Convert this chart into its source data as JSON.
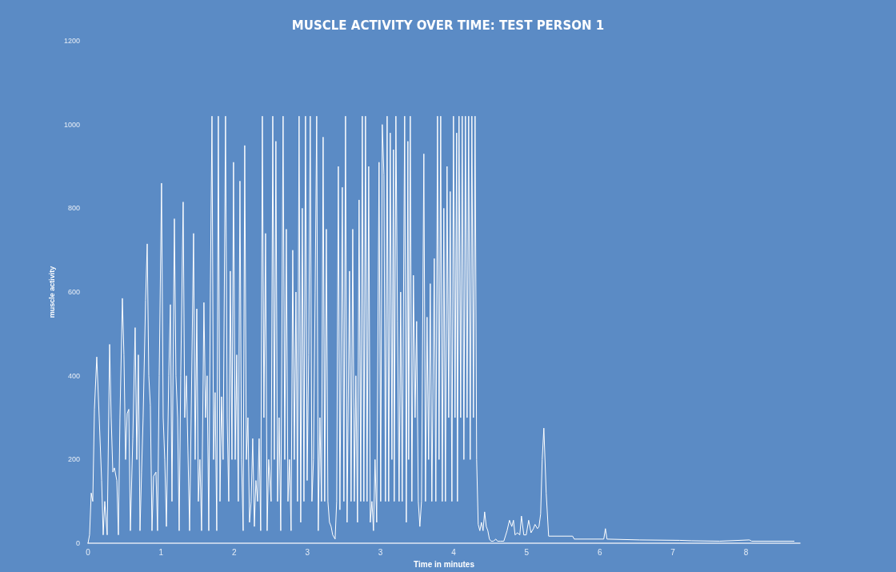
{
  "chart_data": {
    "type": "line",
    "title": "MUSCLE ACTIVITY OVER TIME: TEST PERSON 1",
    "xlabel": "Time in minutes",
    "ylabel": "muscle activity",
    "xlim": [
      0,
      8.2
    ],
    "xticks": [
      0,
      {
        "value": 0.842,
        "label": "1"
      },
      {
        "value": 1.684,
        "label": "2"
      },
      {
        "value": 2.526,
        "label": "3"
      },
      {
        "value": 3.368,
        "label": "3"
      },
      {
        "value": 4.21,
        "label": "4"
      },
      {
        "value": 5.052,
        "label": "5"
      },
      {
        "value": 5.894,
        "label": "6"
      },
      {
        "value": 6.736,
        "label": "7"
      },
      {
        "value": 7.578,
        "label": "8"
      }
    ],
    "ylim": [
      0,
      1200
    ],
    "yticks": [
      0,
      200,
      400,
      600,
      800,
      1000,
      1200
    ],
    "grid": false,
    "marker": "none",
    "line_style": "solid",
    "series": [
      {
        "color": "#ffffff",
        "x": [
          0,
          0.018,
          0.037,
          0.055,
          0.074,
          0.101,
          0.129,
          0.157,
          0.175,
          0.193,
          0.221,
          0.249,
          0.267,
          0.286,
          0.304,
          0.332,
          0.35,
          0.368,
          0.396,
          0.414,
          0.433,
          0.451,
          0.47,
          0.488,
          0.516,
          0.543,
          0.562,
          0.58,
          0.599,
          0.617,
          0.635,
          0.663,
          0.682,
          0.7,
          0.718,
          0.737,
          0.755,
          0.783,
          0.801,
          0.82,
          0.847,
          0.866,
          0.884,
          0.903,
          0.93,
          0.949,
          0.967,
          0.995,
          1.013,
          1.032,
          1.05,
          1.068,
          1.096,
          1.114,
          1.133,
          1.151,
          1.17,
          1.188,
          1.216,
          1.234,
          1.253,
          1.271,
          1.289,
          1.308,
          1.335,
          1.354,
          1.372,
          1.391,
          1.409,
          1.428,
          1.446,
          1.464,
          1.483,
          1.501,
          1.52,
          1.538,
          1.556,
          1.584,
          1.603,
          1.621,
          1.639,
          1.658,
          1.676,
          1.695,
          1.713,
          1.731,
          1.75,
          1.768,
          1.787,
          1.805,
          1.824,
          1.842,
          1.86,
          1.879,
          1.897,
          1.916,
          1.934,
          1.953,
          1.971,
          1.989,
          2.008,
          2.026,
          2.045,
          2.063,
          2.081,
          2.109,
          2.128,
          2.146,
          2.164,
          2.183,
          2.201,
          2.22,
          2.247,
          2.266,
          2.284,
          2.303,
          2.321,
          2.339,
          2.358,
          2.376,
          2.395,
          2.413,
          2.431,
          2.45,
          2.468,
          2.487,
          2.505,
          2.524,
          2.542,
          2.56,
          2.579,
          2.597,
          2.616,
          2.634,
          2.652,
          2.671,
          2.689,
          2.708,
          2.726,
          2.745,
          2.763,
          2.781,
          2.8,
          2.818,
          2.846,
          2.864,
          2.883,
          2.901,
          2.929,
          2.947,
          2.966,
          2.984,
          3.012,
          3.03,
          3.049,
          3.067,
          3.085,
          3.104,
          3.122,
          3.141,
          3.159,
          3.177,
          3.196,
          3.214,
          3.233,
          3.251,
          3.27,
          3.288,
          3.306,
          3.325,
          3.352,
          3.371,
          3.389,
          3.408,
          3.426,
          3.445,
          3.463,
          3.481,
          3.5,
          3.518,
          3.527,
          3.546,
          3.564,
          3.583,
          3.601,
          3.619,
          3.647,
          3.666,
          3.684,
          3.693,
          3.712,
          3.73,
          3.748,
          3.767,
          3.785,
          3.804,
          3.822,
          3.841,
          3.868,
          3.887,
          3.905,
          3.923,
          3.942,
          3.96,
          3.988,
          4.006,
          4.025,
          4.043,
          4.062,
          4.08,
          4.098,
          4.117,
          4.135,
          4.154,
          4.172,
          4.191,
          4.209,
          4.227,
          4.246,
          4.255,
          4.273,
          4.292,
          4.31,
          4.329,
          4.347,
          4.366,
          4.384,
          4.402,
          4.421,
          4.439,
          4.458,
          4.476,
          4.494,
          4.513,
          4.531,
          4.55,
          4.568,
          4.587,
          4.605,
          4.623,
          4.642,
          4.669,
          4.697,
          4.716,
          4.752,
          4.789,
          4.826,
          4.854,
          4.881,
          4.9,
          4.918,
          4.946,
          4.973,
          4.992,
          5.019,
          5.047,
          5.075,
          5.102,
          5.13,
          5.148,
          5.176,
          5.194,
          5.213,
          5.231,
          5.25,
          5.277,
          5.305,
          5.581,
          5.6,
          5.94,
          5.959,
          5.977,
          6.355,
          6.815,
          6.953,
          7.276,
          7.617,
          7.644,
          8.132
        ],
        "values": [
          0,
          20,
          120,
          100,
          320,
          445,
          300,
          150,
          20,
          100,
          20,
          475,
          300,
          170,
          180,
          150,
          20,
          300,
          585,
          450,
          200,
          310,
          320,
          30,
          250,
          515,
          200,
          450,
          30,
          170,
          300,
          580,
          715,
          400,
          330,
          30,
          160,
          170,
          30,
          400,
          860,
          300,
          200,
          40,
          400,
          570,
          100,
          775,
          400,
          300,
          30,
          400,
          815,
          300,
          400,
          220,
          30,
          300,
          740,
          200,
          560,
          100,
          200,
          30,
          575,
          300,
          400,
          30,
          600,
          1020,
          200,
          360,
          30,
          1020,
          100,
          350,
          200,
          1020,
          300,
          100,
          650,
          200,
          910,
          200,
          450,
          100,
          865,
          200,
          30,
          950,
          200,
          300,
          50,
          100,
          250,
          40,
          150,
          100,
          250,
          30,
          1020,
          300,
          740,
          30,
          200,
          100,
          1020,
          200,
          960,
          100,
          300,
          30,
          1020,
          200,
          750,
          100,
          200,
          30,
          700,
          200,
          600,
          100,
          1020,
          50,
          800,
          100,
          1020,
          150,
          450,
          1020,
          100,
          200,
          600,
          1020,
          30,
          300,
          100,
          970,
          100,
          750,
          100,
          50,
          40,
          20,
          10,
          100,
          900,
          80,
          850,
          100,
          1020,
          50,
          650,
          100,
          750,
          100,
          400,
          50,
          820,
          100,
          1020,
          100,
          1020,
          100,
          900,
          50,
          100,
          30,
          200,
          50,
          910,
          100,
          1000,
          880,
          100,
          1020,
          100,
          980,
          200,
          940,
          100,
          1020,
          530,
          100,
          600,
          100,
          1020,
          50,
          960,
          200,
          1020,
          100,
          640,
          300,
          530,
          100,
          40,
          100,
          930,
          100,
          540,
          200,
          620,
          100,
          680,
          100,
          1020,
          200,
          1020,
          100,
          800,
          100,
          900,
          300,
          840,
          100,
          1020,
          300,
          980,
          100,
          1020,
          300,
          1020,
          200,
          1020,
          300,
          1020,
          200,
          1020,
          300,
          1020,
          200,
          45,
          30,
          50,
          30,
          75,
          40,
          30,
          10,
          5,
          5,
          10,
          5,
          5,
          5,
          30,
          55,
          40,
          55,
          20,
          25,
          20,
          65,
          20,
          20,
          55,
          25,
          35,
          45,
          35,
          40,
          70,
          200,
          275,
          120,
          17,
          17,
          10,
          10,
          35,
          10,
          8,
          7,
          6,
          5,
          8,
          5,
          5
        ]
      }
    ]
  }
}
